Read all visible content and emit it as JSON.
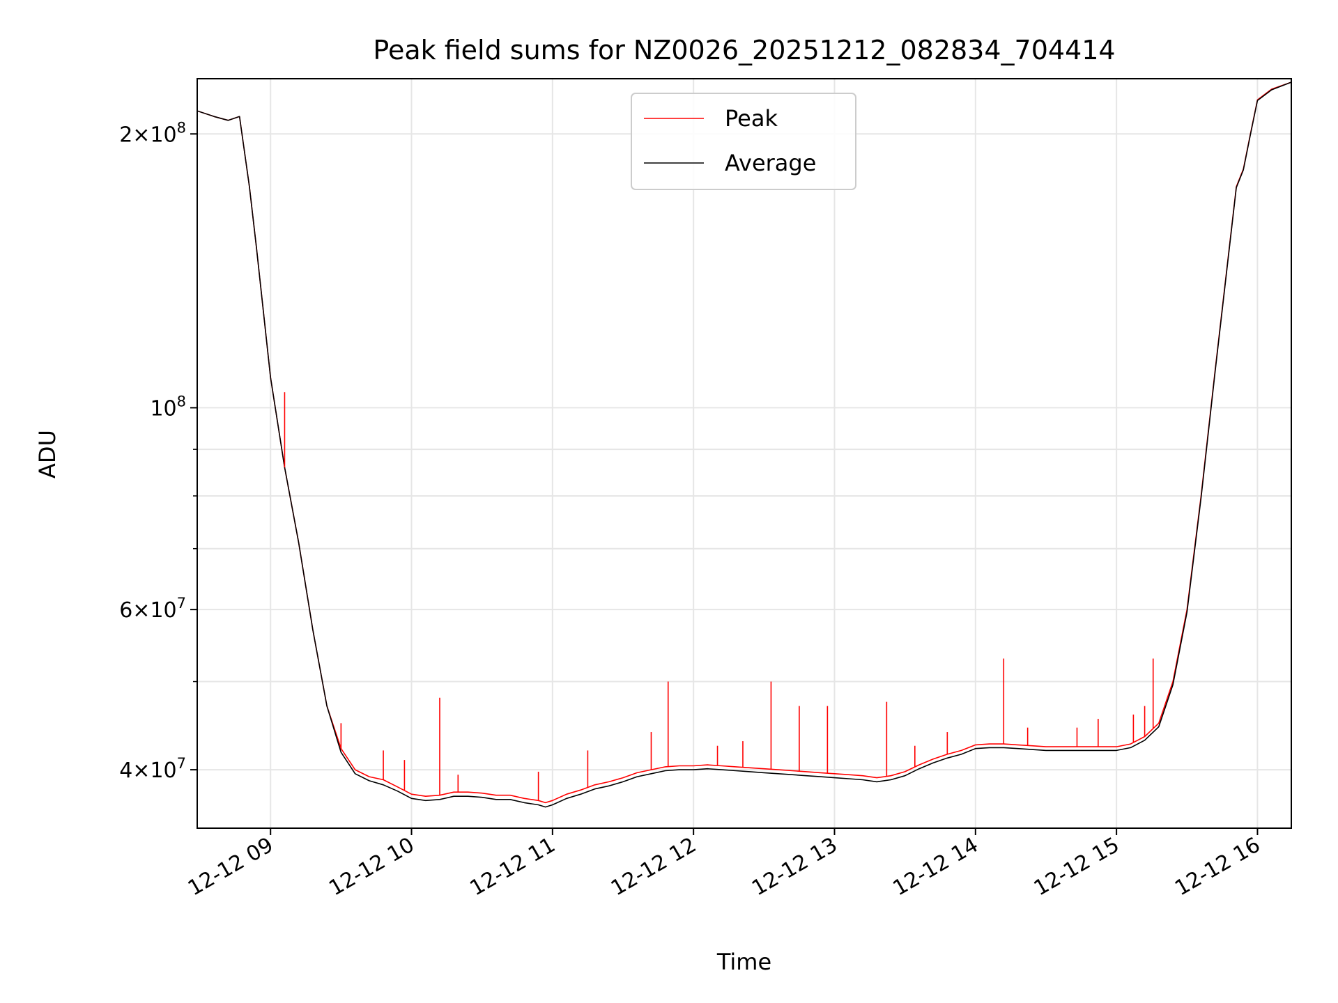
{
  "chart_data": {
    "type": "line",
    "title": "Peak field sums for NZ0026_20251212_082834_704414",
    "xlabel": "Time",
    "ylabel": "ADU",
    "yscale": "log",
    "grid": true,
    "legend_position": "top-center",
    "xlim": [
      8.48,
      16.24
    ],
    "ylim": [
      34500000,
      230000000
    ],
    "x_ticks": [
      9,
      10,
      11,
      12,
      13,
      14,
      15,
      16
    ],
    "x_tick_labels": [
      "12-12 09",
      "12-12 10",
      "12-12 11",
      "12-12 12",
      "12-12 13",
      "12-12 14",
      "12-12 15",
      "12-12 16"
    ],
    "y_major_ticks": [
      {
        "value": 40000000,
        "mantissa": "4",
        "exponent": "7"
      },
      {
        "value": 60000000,
        "mantissa": "6",
        "exponent": "7"
      },
      {
        "value": 100000000,
        "mantissa": "",
        "exponent": "8"
      },
      {
        "value": 200000000,
        "mantissa": "2",
        "exponent": "8"
      }
    ],
    "y_minor_ticks": [
      50000000,
      70000000,
      80000000,
      90000000
    ],
    "series": [
      {
        "name": "Peak",
        "color": "#ff0000",
        "x": [
          8.48,
          8.6,
          8.7,
          8.78,
          8.85,
          8.9,
          9.0,
          9.1,
          9.2,
          9.3,
          9.4,
          9.5,
          9.6,
          9.7,
          9.8,
          9.9,
          10.0,
          10.1,
          10.2,
          10.3,
          10.4,
          10.5,
          10.6,
          10.7,
          10.8,
          10.9,
          10.95,
          11.0,
          11.1,
          11.2,
          11.3,
          11.4,
          11.5,
          11.6,
          11.7,
          11.8,
          11.9,
          12.0,
          12.1,
          12.2,
          12.3,
          12.4,
          12.5,
          12.6,
          12.7,
          12.8,
          12.9,
          13.0,
          13.1,
          13.2,
          13.3,
          13.4,
          13.5,
          13.6,
          13.7,
          13.8,
          13.9,
          14.0,
          14.1,
          14.2,
          14.3,
          14.4,
          14.5,
          14.6,
          14.7,
          14.8,
          14.9,
          15.0,
          15.1,
          15.2,
          15.3,
          15.4,
          15.5,
          15.6,
          15.7,
          15.8,
          15.85,
          15.9,
          15.95,
          16.0,
          16.1,
          16.24
        ],
        "y": [
          212000000,
          209000000,
          207000000,
          209000000,
          175000000,
          150000000,
          108000000,
          86000000,
          71000000,
          57000000,
          47000000,
          42200000,
          40000000,
          39300000,
          39000000,
          38300000,
          37600000,
          37400000,
          37500000,
          37800000,
          37800000,
          37700000,
          37500000,
          37500000,
          37200000,
          37000000,
          36800000,
          37000000,
          37600000,
          38000000,
          38500000,
          38800000,
          39200000,
          39700000,
          40000000,
          40300000,
          40400000,
          40400000,
          40500000,
          40400000,
          40300000,
          40200000,
          40100000,
          40000000,
          39900000,
          39800000,
          39700000,
          39600000,
          39500000,
          39400000,
          39200000,
          39400000,
          39800000,
          40500000,
          41100000,
          41600000,
          42000000,
          42600000,
          42700000,
          42700000,
          42600000,
          42500000,
          42400000,
          42400000,
          42400000,
          42400000,
          42400000,
          42400000,
          42700000,
          43500000,
          45000000,
          50000000,
          60000000,
          80000000,
          110000000,
          150000000,
          175000000,
          183000000,
          200000000,
          218000000,
          224000000,
          228000000
        ]
      },
      {
        "name": "Average",
        "color": "#000000",
        "x": [
          8.48,
          8.6,
          8.7,
          8.78,
          8.85,
          8.9,
          9.0,
          9.1,
          9.2,
          9.3,
          9.4,
          9.5,
          9.6,
          9.7,
          9.8,
          9.9,
          10.0,
          10.1,
          10.2,
          10.3,
          10.4,
          10.5,
          10.6,
          10.7,
          10.8,
          10.9,
          10.95,
          11.0,
          11.1,
          11.2,
          11.3,
          11.4,
          11.5,
          11.6,
          11.7,
          11.8,
          11.9,
          12.0,
          12.1,
          12.2,
          12.3,
          12.4,
          12.5,
          12.6,
          12.7,
          12.8,
          12.9,
          13.0,
          13.1,
          13.2,
          13.3,
          13.4,
          13.5,
          13.6,
          13.7,
          13.8,
          13.9,
          14.0,
          14.1,
          14.2,
          14.3,
          14.4,
          14.5,
          14.6,
          14.7,
          14.8,
          14.9,
          15.0,
          15.1,
          15.2,
          15.3,
          15.4,
          15.5,
          15.6,
          15.7,
          15.8,
          15.85,
          15.9,
          15.95,
          16.0,
          16.1,
          16.24
        ],
        "y": [
          212000000,
          209000000,
          207000000,
          209000000,
          175000000,
          150000000,
          108000000,
          86000000,
          71000000,
          57000000,
          47000000,
          41800000,
          39600000,
          38900000,
          38500000,
          37900000,
          37200000,
          37000000,
          37100000,
          37400000,
          37400000,
          37300000,
          37100000,
          37100000,
          36800000,
          36600000,
          36400000,
          36600000,
          37200000,
          37600000,
          38100000,
          38400000,
          38800000,
          39300000,
          39600000,
          39900000,
          40000000,
          40000000,
          40100000,
          40000000,
          39900000,
          39800000,
          39700000,
          39600000,
          39500000,
          39400000,
          39300000,
          39200000,
          39100000,
          39000000,
          38800000,
          39000000,
          39400000,
          40100000,
          40700000,
          41200000,
          41600000,
          42200000,
          42300000,
          42300000,
          42200000,
          42100000,
          42000000,
          42000000,
          42000000,
          42000000,
          42000000,
          42000000,
          42300000,
          43100000,
          44600000,
          49600000,
          59600000,
          79600000,
          109600000,
          149600000,
          174600000,
          182600000,
          199600000,
          217600000,
          223600000,
          228000000
        ]
      }
    ],
    "peak_spikes": [
      {
        "x": 9.1,
        "y": 104000000
      },
      {
        "x": 9.38,
        "y": 49000000
      },
      {
        "x": 9.5,
        "y": 45000000
      },
      {
        "x": 9.8,
        "y": 42000000
      },
      {
        "x": 9.95,
        "y": 41000000
      },
      {
        "x": 10.2,
        "y": 48000000
      },
      {
        "x": 10.33,
        "y": 39500000
      },
      {
        "x": 10.9,
        "y": 39800000
      },
      {
        "x": 11.25,
        "y": 42000000
      },
      {
        "x": 11.7,
        "y": 44000000
      },
      {
        "x": 11.82,
        "y": 50000000
      },
      {
        "x": 12.17,
        "y": 42500000
      },
      {
        "x": 12.35,
        "y": 43000000
      },
      {
        "x": 12.55,
        "y": 50000000
      },
      {
        "x": 12.75,
        "y": 47000000
      },
      {
        "x": 12.95,
        "y": 47000000
      },
      {
        "x": 13.37,
        "y": 47500000
      },
      {
        "x": 13.57,
        "y": 42500000
      },
      {
        "x": 13.8,
        "y": 44000000
      },
      {
        "x": 14.2,
        "y": 53000000
      },
      {
        "x": 14.37,
        "y": 44500000
      },
      {
        "x": 14.72,
        "y": 44500000
      },
      {
        "x": 14.87,
        "y": 45500000
      },
      {
        "x": 15.12,
        "y": 46000000
      },
      {
        "x": 15.2,
        "y": 47000000
      },
      {
        "x": 15.26,
        "y": 53000000
      }
    ]
  }
}
